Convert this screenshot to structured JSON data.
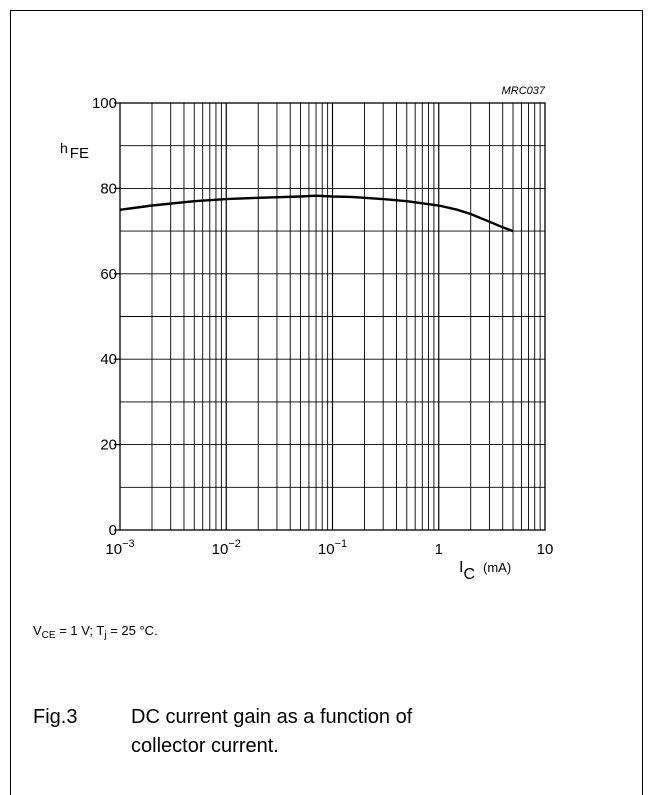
{
  "figure": {
    "ref_code": "MRC037",
    "label": "Fig.3",
    "caption": "DC current gain as a function of collector current."
  },
  "conditions": {
    "vce_sym": "V",
    "vce_sub": "CE",
    "vce_val": " = 1 V; T",
    "tj_sub": "j",
    "tj_val": " = 25 °C."
  },
  "chart_data": {
    "type": "line",
    "x_scale": "log",
    "xlim": [
      0.001,
      10
    ],
    "ylim": [
      0,
      100
    ],
    "ylabel": {
      "main": "h",
      "sub": "FE"
    },
    "xlabel": {
      "main": "I",
      "sub": "C",
      "unit": "(mA)"
    },
    "x_ticks": [
      {
        "base": "10",
        "exp": "−3"
      },
      {
        "base": "10",
        "exp": "−2"
      },
      {
        "base": "10",
        "exp": "−1"
      },
      {
        "base": "1",
        "exp": ""
      },
      {
        "base": "10",
        "exp": ""
      }
    ],
    "y_ticks": [
      "0",
      "20",
      "40",
      "60",
      "80",
      "100"
    ],
    "grid": true,
    "series": [
      {
        "x": [
          0.001,
          0.002,
          0.005,
          0.01,
          0.02,
          0.05,
          0.07,
          0.1,
          0.15,
          0.2,
          0.3,
          0.5,
          0.7,
          1,
          1.5,
          2,
          3,
          4,
          5
        ],
        "y": [
          75,
          76,
          77,
          77.5,
          77.8,
          78.1,
          78.3,
          78.1,
          78,
          77.8,
          77.5,
          77,
          76.5,
          76,
          75,
          74,
          72.2,
          70.9,
          70
        ]
      }
    ]
  }
}
